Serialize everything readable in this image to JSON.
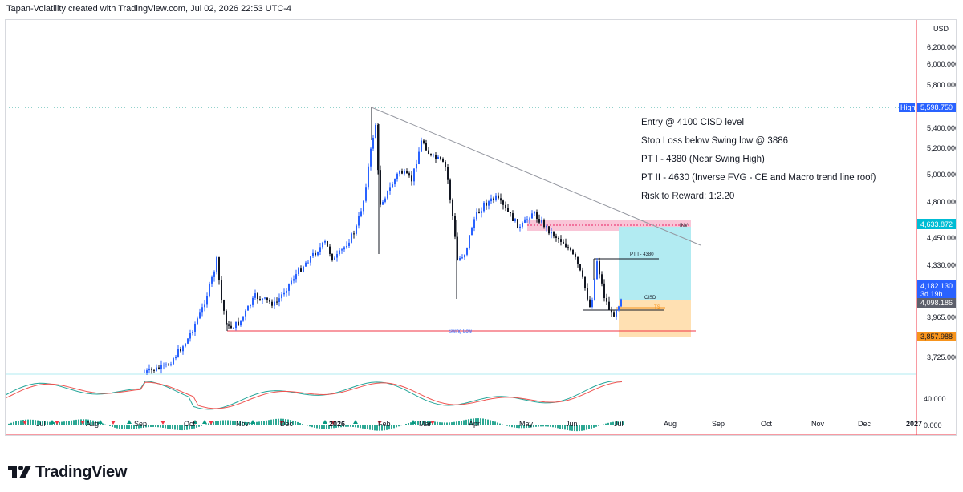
{
  "header": {
    "attribution": "Tapan-Volatility created with TradingView.com, Jul 02, 2026 22:53 UTC-4"
  },
  "price_axis": {
    "currency": "USD",
    "ticks": [
      "6,200.000",
      "6,000.000",
      "5,800.000",
      "5,400.000",
      "5,200.000",
      "5,000.000",
      "4,800.000",
      "4,450.000",
      "4,330.000",
      "3,965.000",
      "3,725.000"
    ],
    "tags": {
      "high_label": "High",
      "high_value": "5,598.750",
      "target": "4,633.872",
      "last_price": "4,182.130",
      "countdown": "3d 19h",
      "entry": "4,098.186",
      "stop": "3,857.988"
    },
    "tag_colors": {
      "high": "#2962ff",
      "target": "#00bcd4",
      "last_price": "#2962ff",
      "entry": "#5d606b",
      "stop": "#f7941d"
    }
  },
  "indicator_axis": {
    "ticks": [
      "40.000",
      "0.000"
    ]
  },
  "time_axis": {
    "labels": [
      "Jul",
      "Aug",
      "Sep",
      "Oct",
      "Nov",
      "Dec",
      "2026",
      "Feb",
      "Mar",
      "Apr",
      "May",
      "Jun",
      "Jul",
      "Aug",
      "Sep",
      "Oct",
      "Nov",
      "Dec",
      "2027"
    ]
  },
  "annotations": {
    "notes": [
      "Entry @ 4100 CISD level",
      "Stop Loss below Swing low @ 3886",
      "PT I - 4380 (Near Swing High)",
      "PT II - 4630 (Inverse FVG - CE and Macro trend line roof)",
      "Risk to Reward: 1:2.20"
    ],
    "inv_label": "INV",
    "pt1_label": "PT I - 4380",
    "cisd_label": "CISD",
    "ts_label": "TS",
    "swing_low_label": "Swing Low"
  },
  "colors": {
    "candle_up": "#2962ff",
    "candle_down": "#131722",
    "profit_zone": "#b2ebf2",
    "loss_zone": "#ffe0b2",
    "inv_zone": "#f8bbd0",
    "swing_line": "#f23645",
    "trendline": "#9598a1",
    "signal_red": "#f23645",
    "signal_green": "#089981",
    "osc_green": "#26a69a",
    "osc_red": "#ef5350"
  },
  "branding": {
    "logo_text": "TradingView"
  }
}
